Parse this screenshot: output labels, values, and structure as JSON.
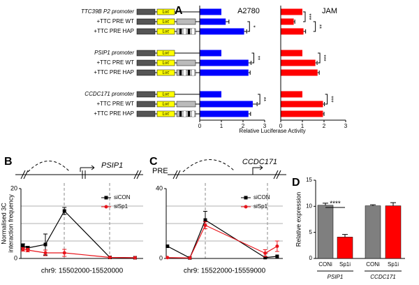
{
  "chart_data": [
    {
      "type": "hbar",
      "panel": "A",
      "title": "A2780",
      "categories": [
        "TTC39B P2 promoter",
        "+TTC PRE WT",
        "+TTC PRE HAP",
        "PSIP1 promoter",
        "+TTC PRE WT",
        "+TTC PRE HAP",
        "CCDC171 promoter",
        "+TTC PRE WT",
        "+TTC PRE HAP"
      ],
      "construct_label": "Luc",
      "values": [
        1,
        1.2,
        2.05,
        1,
        2.25,
        2.25,
        1,
        2.45,
        2.25
      ],
      "errors": [
        null,
        0.15,
        0.12,
        null,
        0.12,
        0.08,
        null,
        0.2,
        0.1
      ],
      "color": "#0000ff",
      "xlim": [
        0,
        3
      ],
      "xticks": [
        0,
        1,
        2,
        3
      ],
      "xlabel": "Relative Luciferase Activity",
      "significance": [
        {
          "text": "*",
          "rows": [
            1,
            2
          ]
        },
        {
          "text": "**",
          "rows": [
            3,
            4
          ]
        },
        {
          "text": "**",
          "rows": [
            6,
            7
          ]
        }
      ]
    },
    {
      "type": "hbar",
      "title": "JAM",
      "values": [
        1,
        0.6,
        1.05,
        1,
        1.6,
        1.7,
        1,
        1.95,
        1.95
      ],
      "errors": [
        null,
        0.05,
        0.1,
        null,
        0.08,
        0.08,
        null,
        0.07,
        0.05
      ],
      "color": "#ff0000",
      "xlim": [
        0,
        3
      ],
      "xticks": [
        0,
        1,
        2,
        3
      ],
      "significance": [
        {
          "text": "***",
          "rows": [
            0,
            1
          ]
        },
        {
          "text": "**",
          "rows": [
            1,
            2
          ]
        },
        {
          "text": "***",
          "rows": [
            3,
            4
          ]
        },
        {
          "text": "***",
          "rows": [
            6,
            7
          ]
        }
      ]
    },
    {
      "type": "line",
      "panel": "B",
      "gene": "PSIP1",
      "x": [
        15502300,
        15503000,
        15505600,
        15508400,
        15515100,
        15518800
      ],
      "xlim": [
        15502000,
        15520000
      ],
      "xlabel": "chr9: 15502000-15520000",
      "ylim": [
        0,
        20
      ],
      "yticks": [
        0,
        20
      ],
      "ygrid": [
        5,
        10,
        15
      ],
      "ylabel": [
        "Normalised 3C",
        "interaction frequency"
      ],
      "series": [
        {
          "name": "siCON",
          "color": "#000000",
          "marker": "square",
          "values": [
            3.6,
            3,
            4,
            13.6,
            0.3,
            0.2
          ],
          "errors": [
            0.6,
            0.5,
            3,
            1,
            null,
            null
          ]
        },
        {
          "name": "siSp1",
          "color": "#e8141b",
          "marker": "circle",
          "values": [
            2.6,
            2.4,
            1.6,
            1.6,
            0.3,
            0.2
          ],
          "errors": [
            0.5,
            0.5,
            0.8,
            1,
            null,
            null
          ]
        }
      ]
    },
    {
      "type": "line",
      "panel": "C",
      "pre": "PRE",
      "gene": "CCDC171",
      "x": [
        15522400,
        15529500,
        15534400,
        15553400,
        15557200
      ],
      "xlim": [
        15522000,
        15559000
      ],
      "xlabel": "chr9: 15522000-15559000",
      "ylim": [
        0,
        40
      ],
      "yticks": [
        0,
        40
      ],
      "ygrid": [
        10,
        20,
        30
      ],
      "series": [
        {
          "name": "siCON",
          "color": "#000000",
          "marker": "square",
          "values": [
            7,
            0.3,
            22,
            0.5,
            1.2
          ],
          "errors": [
            null,
            null,
            5,
            null,
            null
          ]
        },
        {
          "name": "siSp1",
          "color": "#e8141b",
          "marker": "circle",
          "values": [
            0.5,
            0.3,
            19,
            3,
            7
          ],
          "errors": [
            null,
            null,
            2,
            2,
            3
          ]
        }
      ]
    },
    {
      "type": "bar",
      "panel": "D",
      "categories": [
        "CONi",
        "Sp1i",
        "CONi",
        "Sp1i"
      ],
      "groups": [
        "PSIP1",
        "CCDC171"
      ],
      "values": [
        10.2,
        4.1,
        10.1,
        10.1
      ],
      "errors": [
        0.4,
        0.5,
        0.2,
        0.6
      ],
      "colors": [
        "#7f7f7f",
        "#ff0000",
        "#7f7f7f",
        "#ff0000"
      ],
      "ylim": [
        0,
        15
      ],
      "yticks": [
        0,
        5,
        10,
        15
      ],
      "ylabel": "Relative expression",
      "significance": [
        {
          "text": "****",
          "bars": [
            0,
            1
          ]
        }
      ]
    }
  ]
}
